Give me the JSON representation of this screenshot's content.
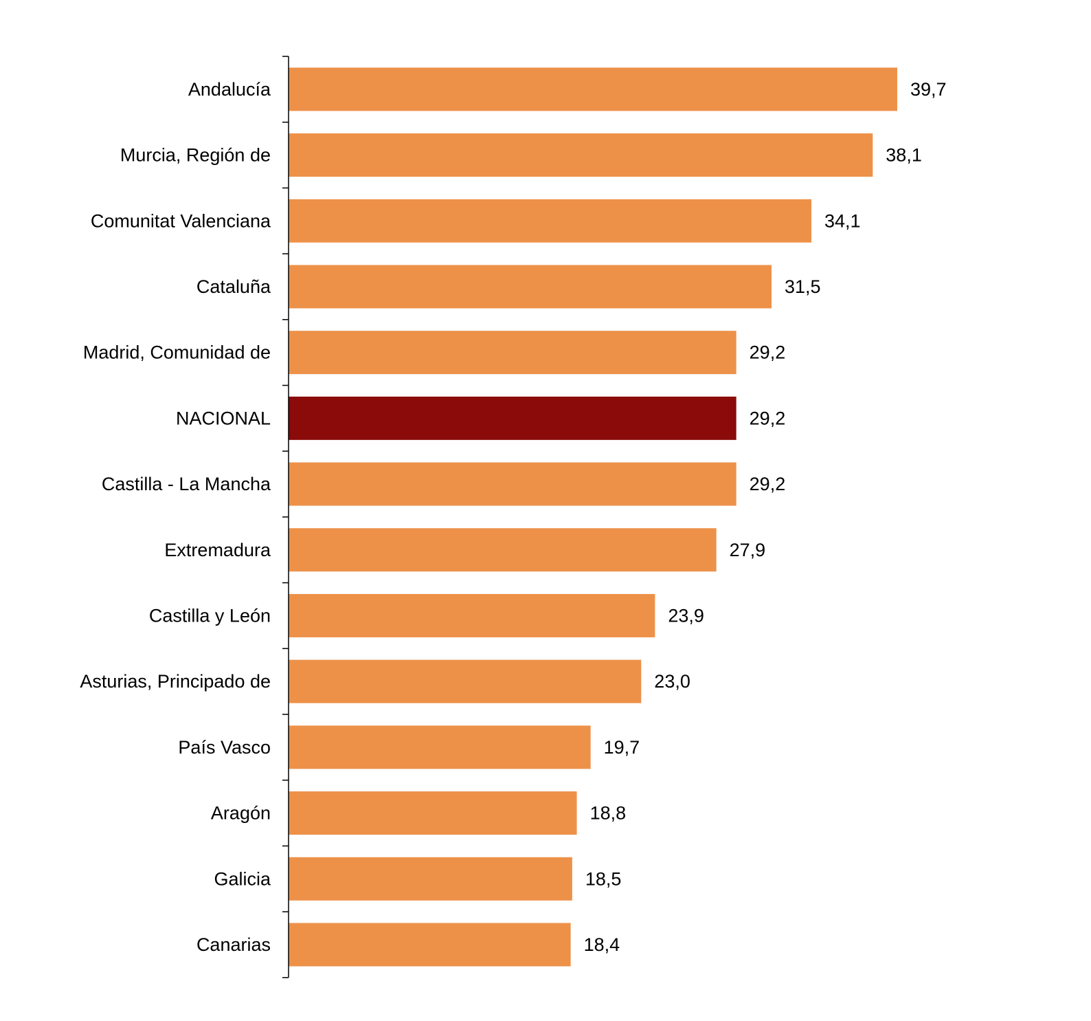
{
  "chart_data": {
    "type": "bar",
    "orientation": "horizontal",
    "categories": [
      "Andalucía",
      "Murcia, Región de",
      "Comunitat Valenciana",
      "Cataluña",
      "Madrid, Comunidad de",
      "NACIONAL",
      "Castilla - La Mancha",
      "Extremadura",
      "Castilla y León",
      "Asturias, Principado de",
      "País Vasco",
      "Aragón",
      "Galicia",
      "Canarias"
    ],
    "values": [
      39.7,
      38.1,
      34.1,
      31.5,
      29.2,
      29.2,
      29.2,
      27.9,
      23.9,
      23.0,
      19.7,
      18.8,
      18.5,
      18.4
    ],
    "value_labels": [
      "39,7",
      "38,1",
      "34,1",
      "31,5",
      "29,2",
      "29,2",
      "29,2",
      "27,9",
      "23,9",
      "23,0",
      "19,7",
      "18,8",
      "18,5",
      "18,4"
    ],
    "highlight_category": "NACIONAL",
    "colors": {
      "bar": "#ED9149",
      "highlight": "#8B0A0A",
      "axis": "#000000",
      "text": "#000000"
    },
    "title": "",
    "xlabel": "",
    "ylabel": "",
    "xlim": [
      0,
      39.7
    ],
    "grid": false,
    "legend": "none"
  }
}
